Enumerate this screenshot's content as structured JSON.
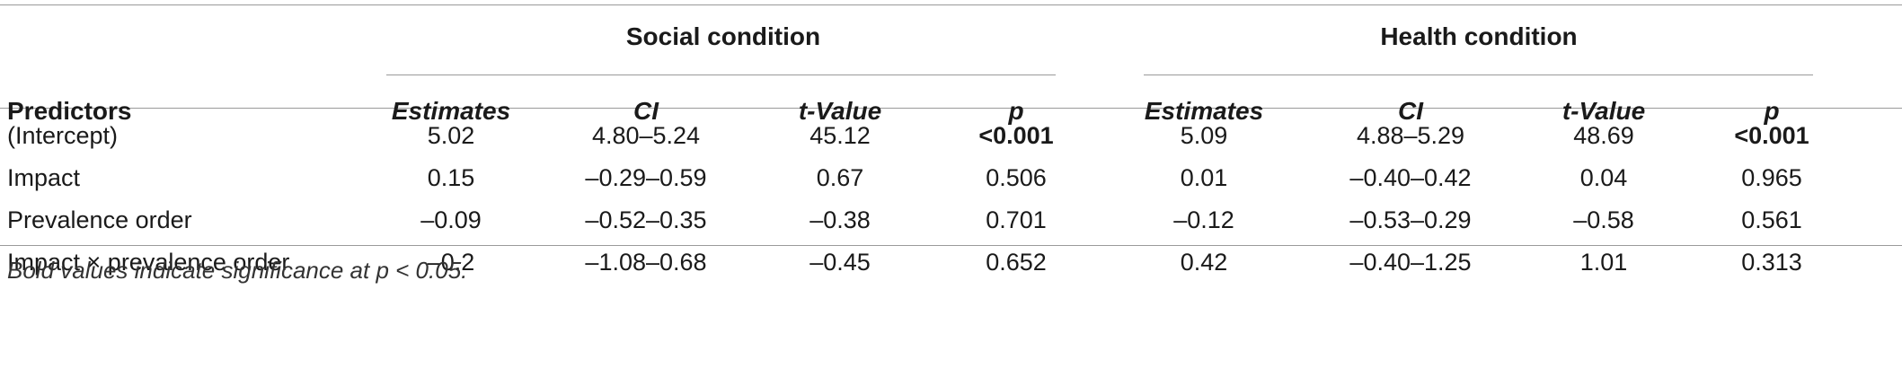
{
  "groups": [
    "Social condition",
    "Health condition"
  ],
  "row_header": "Predictors",
  "columns": [
    "Estimates",
    "CI",
    "t-Value",
    "p",
    "Estimates",
    "CI",
    "t-Value",
    "p"
  ],
  "rows": [
    {
      "label": "(Intercept)",
      "cells": [
        "5.02",
        "4.80–5.24",
        "45.12",
        "<0.001",
        "5.09",
        "4.88–5.29",
        "48.69",
        "<0.001"
      ],
      "bold": [
        false,
        false,
        false,
        true,
        false,
        false,
        false,
        true
      ]
    },
    {
      "label": "Impact",
      "cells": [
        "0.15",
        "–0.29–0.59",
        "0.67",
        "0.506",
        "0.01",
        "–0.40–0.42",
        "0.04",
        "0.965"
      ],
      "bold": [
        false,
        false,
        false,
        false,
        false,
        false,
        false,
        false
      ]
    },
    {
      "label": "Prevalence order",
      "cells": [
        "–0.09",
        "–0.52–0.35",
        "–0.38",
        "0.701",
        "–0.12",
        "–0.53–0.29",
        "–0.58",
        "0.561"
      ],
      "bold": [
        false,
        false,
        false,
        false,
        false,
        false,
        false,
        false
      ]
    },
    {
      "label": "Impact × prevalence order",
      "cells": [
        "–0.2",
        "–1.08–0.68",
        "–0.45",
        "0.652",
        "0.42",
        "–0.40–1.25",
        "1.01",
        "0.313"
      ],
      "bold": [
        false,
        false,
        false,
        false,
        false,
        false,
        false,
        false
      ]
    }
  ],
  "footnote": "Bold values indicate significance at p < 0.05."
}
